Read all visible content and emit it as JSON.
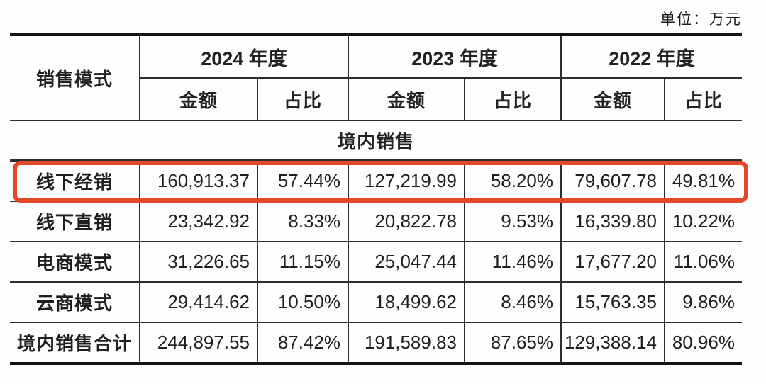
{
  "unit_label": "单位：万元",
  "accent_color": "#e2492c",
  "table": {
    "mode_header": "销售模式",
    "year_groups": [
      {
        "year": "2024 年度",
        "amount_label": "金额",
        "ratio_label": "占比"
      },
      {
        "year": "2023 年度",
        "amount_label": "金额",
        "ratio_label": "占比"
      },
      {
        "year": "2022 年度",
        "amount_label": "金额",
        "ratio_label": "占比"
      }
    ],
    "section_header": "境内销售",
    "rows": [
      {
        "label": "线下经销",
        "highlighted": true,
        "values": [
          "160,913.37",
          "57.44%",
          "127,219.99",
          "58.20%",
          "79,607.78",
          "49.81%"
        ]
      },
      {
        "label": "线下直销",
        "highlighted": false,
        "values": [
          "23,342.92",
          "8.33%",
          "20,822.78",
          "9.53%",
          "16,339.80",
          "10.22%"
        ]
      },
      {
        "label": "电商模式",
        "highlighted": false,
        "values": [
          "31,226.65",
          "11.15%",
          "25,047.44",
          "11.46%",
          "17,677.20",
          "11.06%"
        ]
      },
      {
        "label": "云商模式",
        "highlighted": false,
        "values": [
          "29,414.62",
          "10.50%",
          "18,499.62",
          "8.46%",
          "15,763.35",
          "9.86%"
        ]
      },
      {
        "label": "境内销售合计",
        "highlighted": false,
        "values": [
          "244,897.55",
          "87.42%",
          "191,589.83",
          "87.65%",
          "129,388.14",
          "80.96%"
        ]
      }
    ]
  }
}
